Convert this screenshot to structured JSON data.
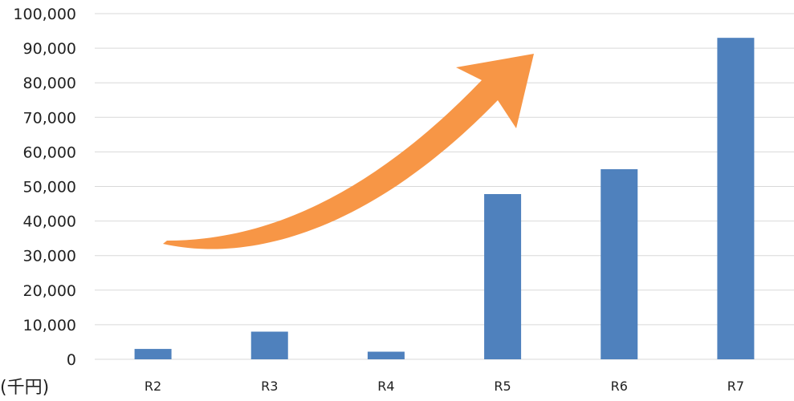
{
  "chart_data": {
    "type": "bar",
    "categories": [
      "R2",
      "R3",
      "R4",
      "R5",
      "R6",
      "R7"
    ],
    "values": [
      3000,
      8000,
      2200,
      47800,
      55000,
      93000
    ],
    "ylim": [
      0,
      100000
    ],
    "yticks": [
      0,
      10000,
      20000,
      30000,
      40000,
      50000,
      60000,
      70000,
      80000,
      90000,
      100000
    ],
    "ytick_labels": [
      "0",
      "10,000",
      "20,000",
      "30,000",
      "40,000",
      "50,000",
      "60,000",
      "70,000",
      "80,000",
      "90,000",
      "100,000"
    ],
    "unit_label": "(千円)",
    "grid": true,
    "legend": "none",
    "annotation": "upward trend arrow",
    "colors": {
      "bar": "#4f81bd",
      "arrow": "#f79646",
      "grid": "#d9d9d9"
    }
  }
}
